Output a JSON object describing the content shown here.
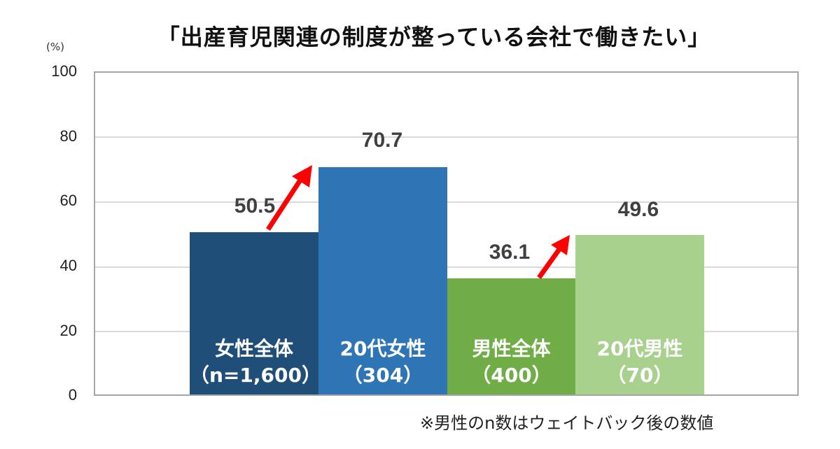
{
  "title": "「出産育児関連の制度が整っている会社で働きたい」",
  "unit_label": "(%)",
  "footnote": "※男性のn数はウェイトバック後の数値",
  "y_ticks": [
    "100",
    "80",
    "60",
    "40",
    "20",
    "0"
  ],
  "bars": [
    {
      "label_line1": "女性全体",
      "label_line2": "（n=1,600）",
      "value": "50.5",
      "color": "#1f4e79"
    },
    {
      "label_line1": "20代女性",
      "label_line2": "（304）",
      "value": "70.7",
      "color": "#2e75b6"
    },
    {
      "label_line1": "男性全体",
      "label_line2": "（400）",
      "value": "36.1",
      "color": "#70ad47"
    },
    {
      "label_line1": "20代男性",
      "label_line2": "（70）",
      "value": "49.6",
      "color": "#a9d18e"
    }
  ],
  "arrow_color": "#ff0000",
  "chart_data": {
    "type": "bar",
    "title": "「出産育児関連の制度が整っている会社で働きたい」",
    "categories": [
      "女性全体（n=1,600）",
      "20代女性（304）",
      "男性全体（400）",
      "20代男性（70）"
    ],
    "values": [
      50.5,
      70.7,
      36.1,
      49.6
    ],
    "xlabel": "",
    "ylabel": "(%)",
    "ylim": [
      0,
      100
    ],
    "yticks": [
      0,
      20,
      40,
      60,
      80,
      100
    ],
    "grid": true,
    "colors": [
      "#1f4e79",
      "#2e75b6",
      "#70ad47",
      "#a9d18e"
    ],
    "annotations": [
      "red arrow from 女性全体 to 20代女性",
      "red arrow from 男性全体 to 20代男性",
      "※男性のn数はウェイトバック後の数値"
    ]
  }
}
